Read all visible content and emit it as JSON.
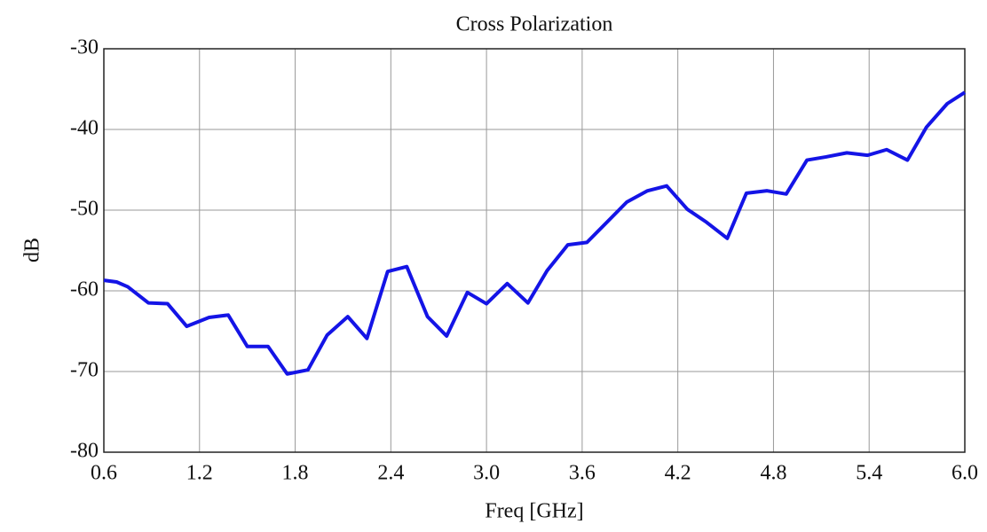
{
  "chart_data": {
    "type": "line",
    "title": "Cross Polarization",
    "x_label": "Freq [GHz]",
    "y_label": "dB",
    "x": [
      0.6,
      0.68,
      0.75,
      0.88,
      1.0,
      1.12,
      1.26,
      1.38,
      1.5,
      1.63,
      1.75,
      1.88,
      2.0,
      2.13,
      2.25,
      2.38,
      2.5,
      2.63,
      2.75,
      2.88,
      3.0,
      3.13,
      3.26,
      3.38,
      3.51,
      3.63,
      3.76,
      3.88,
      4.01,
      4.13,
      4.26,
      4.38,
      4.51,
      4.63,
      4.76,
      4.88,
      5.01,
      5.13,
      5.26,
      5.39,
      5.51,
      5.64,
      5.76,
      5.89,
      6.0
    ],
    "series": [
      {
        "name": "Cross Polarization",
        "color": "#1414e6",
        "values": [
          -58.7,
          -58.9,
          -59.5,
          -61.5,
          -61.6,
          -64.4,
          -63.3,
          -63.0,
          -66.9,
          -66.9,
          -70.3,
          -69.8,
          -65.5,
          -63.2,
          -65.9,
          -57.6,
          -57.0,
          -63.2,
          -65.6,
          -60.2,
          -61.6,
          -59.1,
          -61.5,
          -57.5,
          -54.3,
          -54.0,
          -51.4,
          -49.0,
          -47.6,
          -47.0,
          -49.9,
          -51.5,
          -53.5,
          -47.9,
          -47.6,
          -48.0,
          -43.8,
          -43.4,
          -42.9,
          -43.2,
          -42.5,
          -43.8,
          -39.7,
          -36.8,
          -35.4
        ]
      }
    ],
    "xlim": [
      0.6,
      6.0
    ],
    "xticks": [
      0.6,
      1.2,
      1.8,
      2.4,
      {
        "value": 3,
        "label": "3.0"
      },
      3.6,
      4.2,
      4.8,
      5.4,
      {
        "value": 6,
        "label": "6.0"
      }
    ],
    "ylim": [
      -80,
      -30
    ],
    "yticks": [
      -80,
      -70,
      -60,
      -50,
      -40,
      -30
    ],
    "grid": true
  }
}
